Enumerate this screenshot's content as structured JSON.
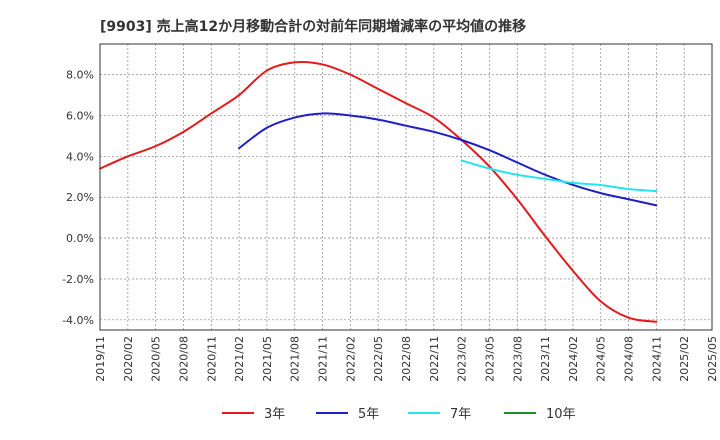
{
  "title": "[9903]  売上高12か月移動合計の対前年同期増減率の平均値の推移",
  "colors": {
    "3y": "#e41a1c",
    "5y": "#1f1fc8",
    "7y": "#22e5f0",
    "10y": "#1f8a1f",
    "grid": "#999999",
    "axis": "#333333"
  },
  "chart_data": {
    "type": "line",
    "title": "[9903]  売上高12か月移動合計の対前年同期増減率の平均値の推移",
    "xlabel": "",
    "ylabel": "",
    "x_ticks": [
      "2019/11",
      "2020/02",
      "2020/05",
      "2020/08",
      "2020/11",
      "2021/02",
      "2021/05",
      "2021/08",
      "2021/11",
      "2022/02",
      "2022/05",
      "2022/08",
      "2022/11",
      "2023/02",
      "2023/05",
      "2023/08",
      "2023/11",
      "2024/02",
      "2024/05",
      "2024/08",
      "2024/11",
      "2025/02",
      "2025/05"
    ],
    "y_ticks": [
      8.0,
      6.0,
      4.0,
      2.0,
      0.0,
      -2.0,
      -4.0
    ],
    "y_tick_labels": [
      "8.0%",
      "6.0%",
      "4.0%",
      "2.0%",
      "0.0%",
      "-2.0%",
      "-4.0%"
    ],
    "ylim": [
      -4.5,
      9.5
    ],
    "grid": true,
    "legend_position": "bottom",
    "series": [
      {
        "name": "3年",
        "color": "#e41a1c",
        "x": [
          "2019/11",
          "2020/02",
          "2020/05",
          "2020/08",
          "2020/11",
          "2021/02",
          "2021/05",
          "2021/08",
          "2021/11",
          "2022/02",
          "2022/05",
          "2022/08",
          "2022/11",
          "2023/02",
          "2023/05",
          "2023/08",
          "2023/11",
          "2024/02",
          "2024/05",
          "2024/08",
          "2024/11"
        ],
        "values": [
          3.4,
          4.0,
          4.5,
          5.2,
          6.1,
          7.0,
          8.2,
          8.6,
          8.5,
          8.0,
          7.3,
          6.6,
          5.9,
          4.8,
          3.5,
          1.9,
          0.1,
          -1.6,
          -3.1,
          -3.9,
          -4.1
        ]
      },
      {
        "name": "5年",
        "color": "#1f1fc8",
        "x": [
          "2021/02",
          "2021/05",
          "2021/08",
          "2021/11",
          "2022/02",
          "2022/05",
          "2022/08",
          "2022/11",
          "2023/02",
          "2023/05",
          "2023/08",
          "2023/11",
          "2024/02",
          "2024/05",
          "2024/08",
          "2024/11"
        ],
        "values": [
          4.4,
          5.4,
          5.9,
          6.1,
          6.0,
          5.8,
          5.5,
          5.2,
          4.8,
          4.3,
          3.7,
          3.1,
          2.6,
          2.2,
          1.9,
          1.6
        ]
      },
      {
        "name": "7年",
        "color": "#22e5f0",
        "x": [
          "2023/02",
          "2023/05",
          "2023/08",
          "2023/11",
          "2024/02",
          "2024/05",
          "2024/08",
          "2024/11"
        ],
        "values": [
          3.8,
          3.4,
          3.1,
          2.9,
          2.7,
          2.6,
          2.4,
          2.3
        ]
      },
      {
        "name": "10年",
        "color": "#1f8a1f",
        "x": [],
        "values": []
      }
    ]
  }
}
